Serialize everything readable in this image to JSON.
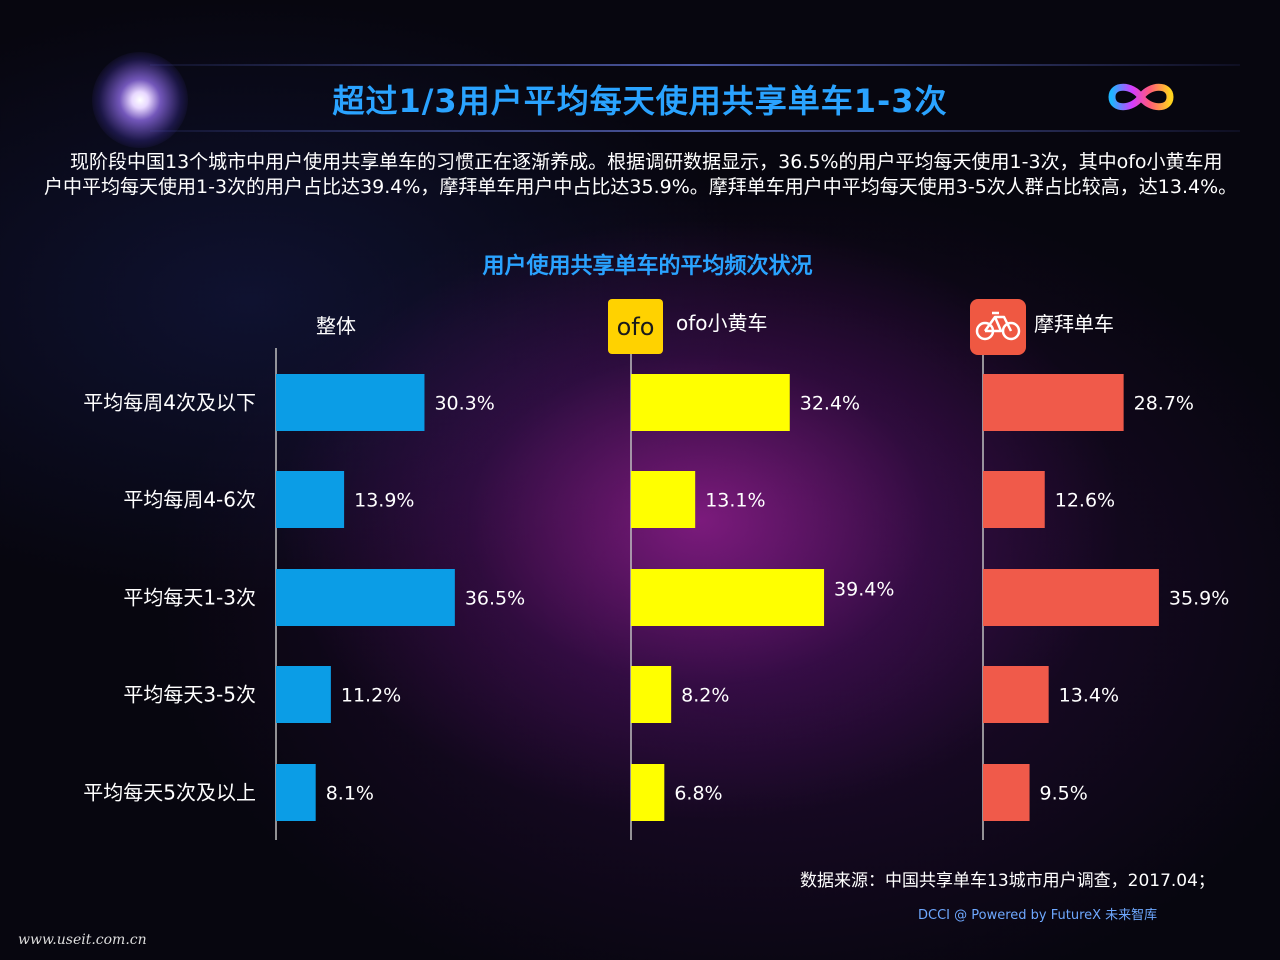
{
  "header": {
    "title": "超过1/3用户平均每天使用共享单车1-3次",
    "brand_logo_icon": "futurex-infinity-logo"
  },
  "intro": {
    "text": "现阶段中国13个城市中用户使用共享单车的习惯正在逐渐养成。根据调研数据显示，36.5%的用户平均每天使用1-3次，其中ofo小黄车用户中平均每天使用1-3次的用户占比达39.4%，摩拜单车用户中占比达35.9%。摩拜单车用户中平均每天使用3-5次人群占比较高，达13.4%。"
  },
  "chart_data": {
    "type": "bar",
    "orientation": "horizontal",
    "title": "用户使用共享单车的平均频次状况",
    "categories": [
      "平均每周4次及以下",
      "平均每周4-6次",
      "平均每天1-3次",
      "平均每天3-5次",
      "平均每天5次及以上"
    ],
    "series": [
      {
        "name": "整体",
        "color": "#0b9de6",
        "values": [
          30.3,
          13.9,
          36.5,
          11.2,
          8.1
        ],
        "labels": [
          "30.3%",
          "13.9%",
          "36.5%",
          "11.2%",
          "8.1%"
        ]
      },
      {
        "name": "ofo小黄车",
        "logo_text": "ofo",
        "logo_icon": "ofo-logo",
        "color": "#ffff00",
        "values": [
          32.4,
          13.1,
          39.4,
          8.2,
          6.8
        ],
        "labels": [
          "32.4%",
          "13.1%",
          "39.4%",
          "8.2%",
          "6.8%"
        ]
      },
      {
        "name": "摩拜单车",
        "logo_icon": "mobike-logo",
        "color": "#f05a4a",
        "values": [
          28.7,
          12.6,
          35.9,
          13.4,
          9.5
        ],
        "labels": [
          "28.7%",
          "12.6%",
          "35.9%",
          "13.4%",
          "9.5%"
        ]
      }
    ]
  },
  "footer": {
    "source": "数据来源：中国共享单车13城市用户调查，2017.04；",
    "powered": "DCCI @ Powered by FutureX 未来智库",
    "site": "www.useit.com.cn"
  }
}
